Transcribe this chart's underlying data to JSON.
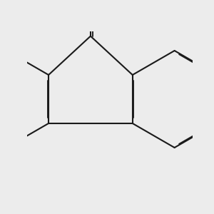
{
  "bg_color": "#ececec",
  "bond_color": "#1a1a1a",
  "bond_width": 1.5,
  "fig_size": [
    3.0,
    3.0
  ],
  "dpi": 100,
  "scale": 0.38
}
